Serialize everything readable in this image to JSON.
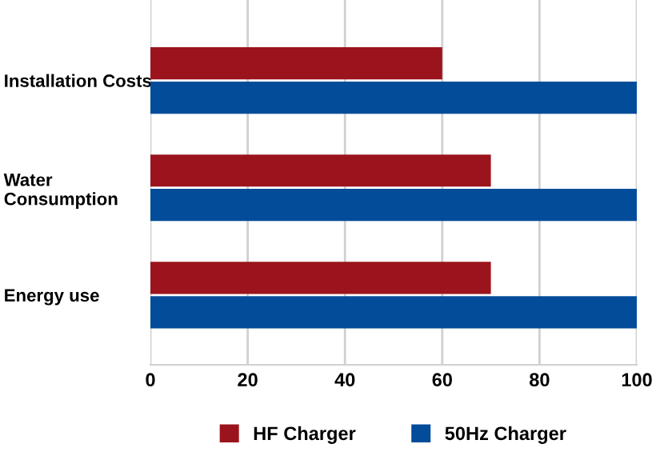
{
  "chart_data": {
    "type": "bar",
    "orientation": "horizontal",
    "categories": [
      "Installation Costs",
      "Water\nConsumption",
      "Energy use"
    ],
    "series": [
      {
        "name": "HF Charger",
        "color": "#9b141d",
        "values": [
          60,
          70,
          70
        ]
      },
      {
        "name": "50Hz Charger",
        "color": "#034c9a",
        "values": [
          100,
          100,
          100
        ]
      }
    ],
    "xlim": [
      0,
      100
    ],
    "xticks": [
      0,
      20,
      40,
      60,
      80,
      100
    ],
    "grid": "x",
    "legend": "bottom"
  }
}
